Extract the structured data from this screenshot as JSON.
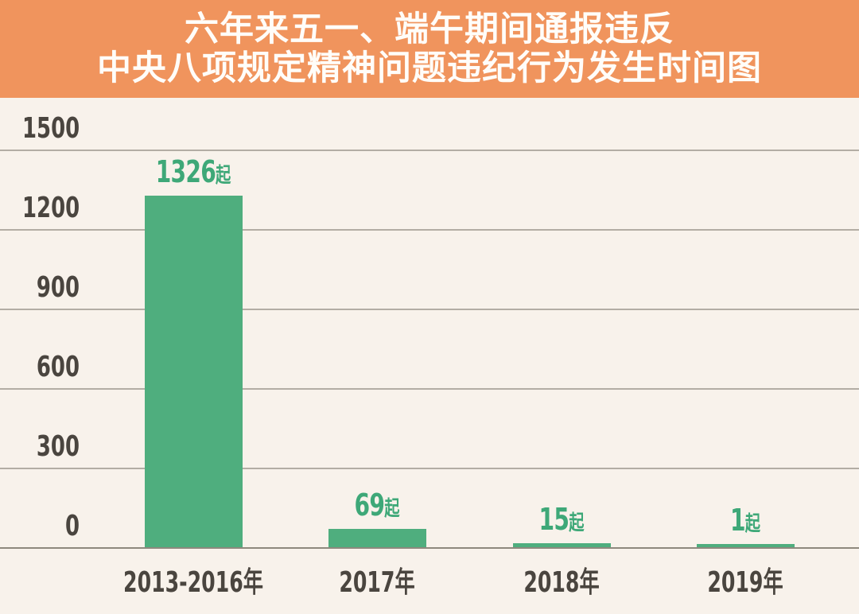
{
  "header": {
    "title_line1": "六年来五一、端午期间通报违反",
    "title_line2": "中央八项规定精神问题违纪行为发生时间图"
  },
  "theme": {
    "header_bg": "#F0945D",
    "plot_bg": "#F8F2EB",
    "bar_color": "#4FAE7E",
    "value_label_color": "#3EA878",
    "axis_text_color": "#4A453F",
    "gridline_color": "#B3ADA4",
    "baseline_color": "#8E897E",
    "title_text_color": "#FFFDF9"
  },
  "chart_data": {
    "type": "bar",
    "title": "六年来五一、端午期间通报违反中央八项规定精神问题违纪行为发生时间图",
    "categories": [
      "2013-2016年",
      "2017年",
      "2018年",
      "2019年"
    ],
    "values": [
      1326,
      69,
      15,
      1
    ],
    "unit": "起",
    "value_labels": [
      "1326起",
      "69起",
      "15起",
      "1起"
    ],
    "yticks": [
      0,
      300,
      600,
      900,
      1200,
      1500
    ],
    "ylim": [
      0,
      1500
    ],
    "xlabel": "",
    "ylabel": "",
    "grid": true,
    "legend": "none"
  }
}
